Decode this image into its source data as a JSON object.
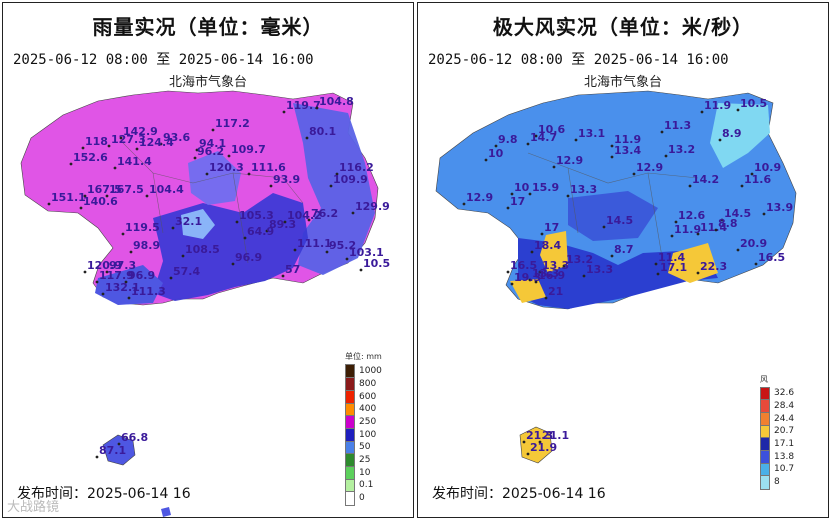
{
  "rain_panel": {
    "title": "雨量实况（单位：毫米）",
    "period": "2025-06-12 08:00 至 2025-06-14 16:00",
    "source": "北海市气象台",
    "issue_time": "发布时间：2025-06-14 16",
    "legend_title": "单位: mm",
    "legend": [
      {
        "value": "1000",
        "color": "#3d1e05"
      },
      {
        "value": "800",
        "color": "#8b1a1a"
      },
      {
        "value": "600",
        "color": "#ee2200"
      },
      {
        "value": "400",
        "color": "#ff8c00"
      },
      {
        "value": "250",
        "color": "#cc00cc"
      },
      {
        "value": "100",
        "color": "#1e1ebe"
      },
      {
        "value": "50",
        "color": "#4a80e8"
      },
      {
        "value": "25",
        "color": "#2e8b2e"
      },
      {
        "value": "10",
        "color": "#5cd05c"
      },
      {
        "value": "0.1",
        "color": "#b4f0a0"
      },
      {
        "value": "0",
        "color": "#ffffff"
      }
    ],
    "labels": [
      "119.7",
      "104.8",
      "117.2",
      "80.1",
      "118",
      "142.9",
      "93.6",
      "127.3",
      "124.4",
      "94.1",
      "96.2",
      "152.6",
      "141.4",
      "109.7",
      "120.3",
      "111.6",
      "116.2",
      "93.9",
      "109.9",
      "167.5",
      "167.5",
      "104.4",
      "151.1",
      "140.6",
      "129.9",
      "105.3",
      "104.2",
      "76.2",
      "32.1",
      "89.3",
      "64.9",
      "119.5",
      "111.1",
      "98.9",
      "108.5",
      "95.2",
      "103.1",
      "10.5",
      "96.9",
      "120.9",
      "97.3",
      "57",
      "117.9",
      "96.9",
      "57.4",
      "132.1",
      "111.3",
      "66.8",
      "87.1"
    ]
  },
  "wind_panel": {
    "title": "极大风实况（单位：米/秒）",
    "period": "2025-06-12 08:00 至 2025-06-14 16:00",
    "source": "北海市气象台",
    "issue_time": "发布时间：2025-06-14 16",
    "legend_title": "风",
    "legend": [
      {
        "value": "32.6",
        "color": "#c81414"
      },
      {
        "value": "28.4",
        "color": "#e84a3a"
      },
      {
        "value": "24.4",
        "color": "#f08030"
      },
      {
        "value": "20.7",
        "color": "#f5c838"
      },
      {
        "value": "17.1",
        "color": "#1e28a8"
      },
      {
        "value": "13.8",
        "color": "#3c50dc"
      },
      {
        "value": "10.7",
        "color": "#4ab0e8"
      },
      {
        "value": "8",
        "color": "#9ce0f0"
      }
    ],
    "labels": [
      "11.9",
      "10.5",
      "10.6",
      "13.1",
      "11.3",
      "9.8",
      "14.7",
      "11.9",
      "8.9",
      "10",
      "12.9",
      "13.4",
      "13.2",
      "10.9",
      "12.9",
      "14.2",
      "11.6",
      "10",
      "15.9",
      "13.3",
      "12.9",
      "17",
      "14.5",
      "12.6",
      "14.5",
      "13.9",
      "11.4",
      "17",
      "11.9",
      "8.8",
      "20.9",
      "18.4",
      "8.7",
      "13.2",
      "11.4",
      "16.5",
      "16.5",
      "17.1",
      "22.3",
      "13.3",
      "13.3",
      "13.3",
      "16.9",
      "19.3",
      "21",
      "21.3",
      "21.1",
      "21.9"
    ]
  },
  "watermark": "大战路镜"
}
